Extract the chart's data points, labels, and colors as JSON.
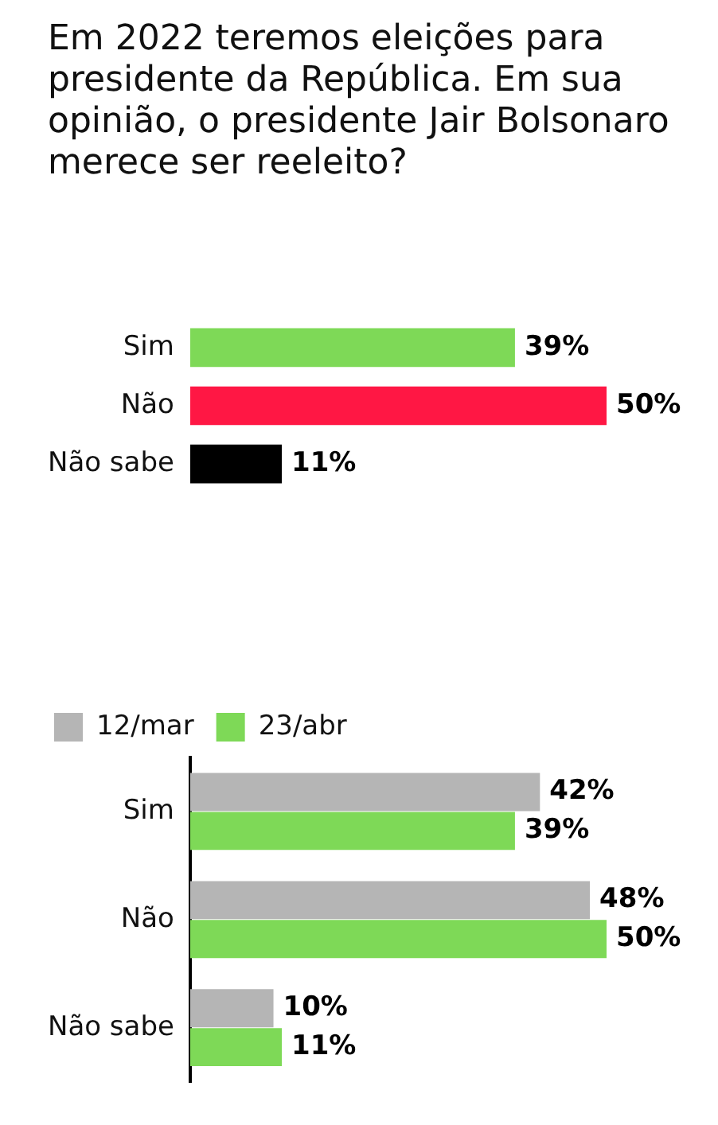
{
  "chart_data": [
    {
      "type": "bar",
      "orientation": "horizontal",
      "title": "Em 2022 teremos eleições para presidente da República. Em sua opinião, o presidente Jair Bolsonaro merece ser reeleito?",
      "categories": [
        "Sim",
        "Não",
        "Não sabe"
      ],
      "values": [
        39,
        50,
        11
      ],
      "colors": [
        "#7ed957",
        "#ff1744",
        "#000000"
      ],
      "value_labels": [
        "39%",
        "50%",
        "11%"
      ],
      "legend": false
    },
    {
      "type": "bar",
      "orientation": "horizontal",
      "categories": [
        "Sim",
        "Não",
        "Não sabe"
      ],
      "legend": "top left",
      "series": [
        {
          "name": "12/mar",
          "color": "#b5b5b5",
          "values": [
            42,
            48,
            10
          ],
          "value_labels": [
            "42%",
            "48%",
            "10%"
          ]
        },
        {
          "name": "23/abr",
          "color": "#7ed957",
          "values": [
            39,
            50,
            11
          ],
          "value_labels": [
            "39%",
            "50%",
            "11%"
          ]
        }
      ]
    }
  ]
}
